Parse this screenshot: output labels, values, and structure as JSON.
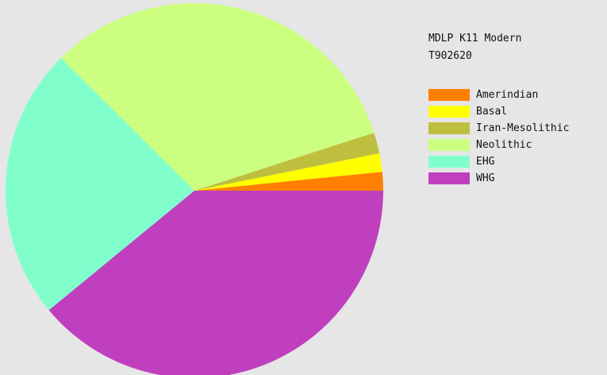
{
  "chart_data": {
    "type": "pie",
    "title": "MDLP K11 Modern",
    "subtitle": "T902620",
    "slices": [
      {
        "label": "Amerindian",
        "value": 1.6,
        "color": "#ff8000"
      },
      {
        "label": "Basal",
        "value": 1.6,
        "color": "#ffff00"
      },
      {
        "label": "Iran-Mesolithic",
        "value": 1.8,
        "color": "#bfbf3f"
      },
      {
        "label": "Neolithic",
        "value": 32.5,
        "color": "#ccff80"
      },
      {
        "label": "EHG",
        "value": 23.5,
        "color": "#80ffcc"
      },
      {
        "label": "WHG",
        "value": 39.0,
        "color": "#bf3fbf"
      }
    ],
    "legend_placement": "right"
  }
}
